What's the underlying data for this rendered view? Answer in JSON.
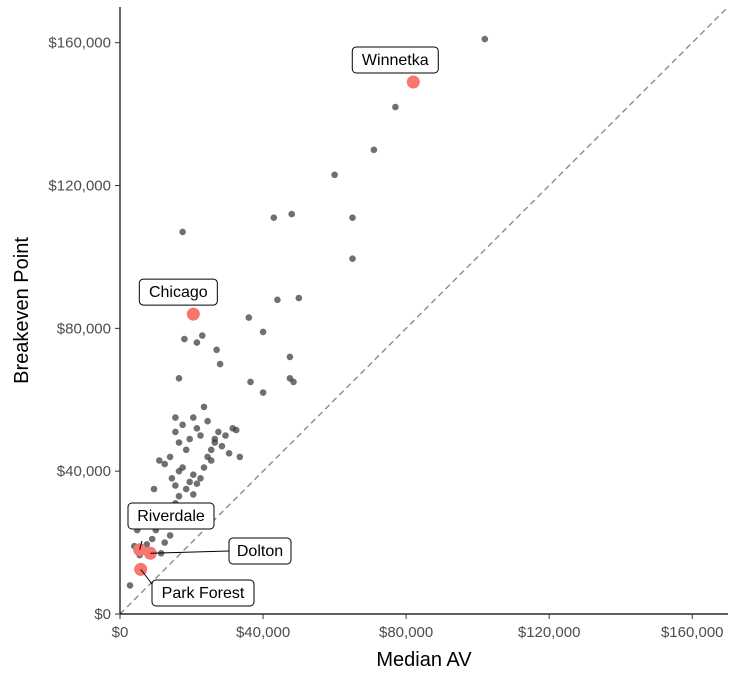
{
  "chart_data": {
    "type": "scatter",
    "title": "",
    "xlabel": "Median AV",
    "ylabel": "Breakeven Point",
    "xlim": [
      0,
      170000
    ],
    "ylim": [
      0,
      170000
    ],
    "xticks": [
      0,
      40000,
      80000,
      120000,
      160000
    ],
    "yticks": [
      0,
      40000,
      80000,
      120000,
      160000
    ],
    "x_tick_labels": [
      "$0",
      "$40,000",
      "$80,000",
      "$120,000",
      "$160,000"
    ],
    "y_tick_labels": [
      "$0",
      "$40,000",
      "$80,000",
      "$120,000",
      "$160,000"
    ],
    "grid": false,
    "reference_line": {
      "type": "identity",
      "style": "dashed",
      "color": "#8c8c8c"
    },
    "colors": {
      "points": "#333333",
      "highlight": "#f8766d"
    },
    "series": [
      {
        "points": [
          [
            2800,
            8000
          ],
          [
            4000,
            19000
          ],
          [
            4800,
            23500
          ],
          [
            5500,
            16500
          ],
          [
            6500,
            18000
          ],
          [
            7500,
            19500
          ],
          [
            9000,
            21000
          ],
          [
            10000,
            23500
          ],
          [
            11500,
            17000
          ],
          [
            12500,
            20000
          ],
          [
            14000,
            22000
          ],
          [
            14500,
            25000
          ],
          [
            15500,
            31000
          ],
          [
            16500,
            33000
          ],
          [
            17500,
            29000
          ],
          [
            18500,
            27000
          ],
          [
            19500,
            30000
          ],
          [
            20500,
            33500
          ],
          [
            21500,
            28000
          ],
          [
            9500,
            35000
          ],
          [
            11000,
            43000
          ],
          [
            12500,
            42000
          ],
          [
            14000,
            44000
          ],
          [
            14500,
            38000
          ],
          [
            15500,
            36000
          ],
          [
            16500,
            40000
          ],
          [
            17500,
            41000
          ],
          [
            18500,
            35000
          ],
          [
            19500,
            37000
          ],
          [
            20500,
            39000
          ],
          [
            21500,
            36500
          ],
          [
            22500,
            38000
          ],
          [
            23500,
            41000
          ],
          [
            24500,
            44000
          ],
          [
            25500,
            43000
          ],
          [
            26500,
            48000
          ],
          [
            27500,
            51000
          ],
          [
            28500,
            47000
          ],
          [
            29500,
            50000
          ],
          [
            30500,
            45000
          ],
          [
            31500,
            52000
          ],
          [
            32500,
            51500
          ],
          [
            33500,
            44000
          ],
          [
            15500,
            51000
          ],
          [
            16500,
            48000
          ],
          [
            17500,
            53000
          ],
          [
            18500,
            46000
          ],
          [
            19500,
            49000
          ],
          [
            20500,
            55000
          ],
          [
            21500,
            52000
          ],
          [
            22500,
            50000
          ],
          [
            23500,
            58000
          ],
          [
            24500,
            54000
          ],
          [
            25500,
            46000
          ],
          [
            26500,
            49000
          ],
          [
            15500,
            55000
          ],
          [
            16500,
            66000
          ],
          [
            18000,
            77000
          ],
          [
            21500,
            76000
          ],
          [
            23000,
            78000
          ],
          [
            27000,
            74000
          ],
          [
            28000,
            70000
          ],
          [
            36000,
            83000
          ],
          [
            36500,
            65000
          ],
          [
            40000,
            62000
          ],
          [
            40000,
            79000
          ],
          [
            44000,
            88000
          ],
          [
            47500,
            72000
          ],
          [
            47500,
            66000
          ],
          [
            48500,
            65000
          ],
          [
            50000,
            88500
          ],
          [
            17500,
            107000
          ],
          [
            43000,
            111000
          ],
          [
            48000,
            112000
          ],
          [
            60000,
            123000
          ],
          [
            65000,
            99500
          ],
          [
            65000,
            111000
          ],
          [
            71000,
            130000
          ],
          [
            77000,
            142000
          ],
          [
            102000,
            161000
          ]
        ]
      },
      {
        "points": [
          [
            82000,
            149000
          ],
          [
            20500,
            84000
          ],
          [
            5500,
            18000
          ],
          [
            8500,
            17000
          ],
          [
            5800,
            12500
          ]
        ]
      }
    ],
    "annotations": [
      {
        "text": "Winnetka",
        "x": 82000,
        "y": 149000
      },
      {
        "text": "Chicago",
        "x": 20500,
        "y": 84000
      },
      {
        "text": "Riverdale",
        "x": 5500,
        "y": 18000
      },
      {
        "text": "Dolton",
        "x": 8500,
        "y": 17000
      },
      {
        "text": "Park Forest",
        "x": 5800,
        "y": 12500
      }
    ]
  }
}
